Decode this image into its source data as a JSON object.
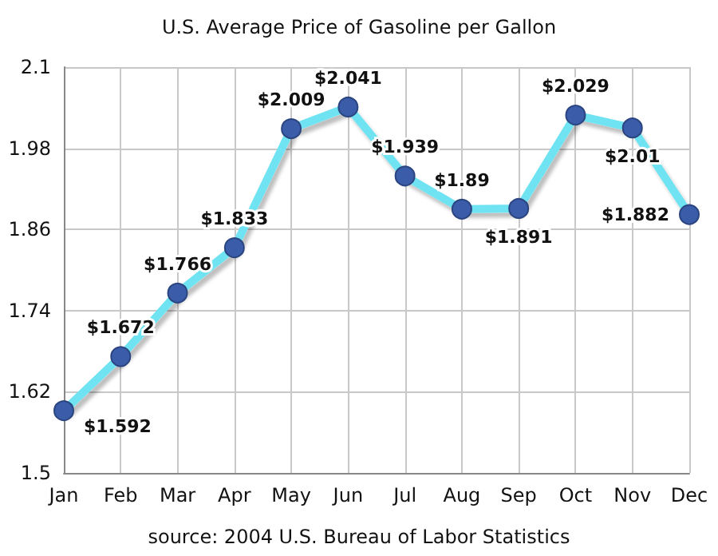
{
  "chart_data": {
    "type": "line",
    "title": "U.S. Average Price of Gasoline per Gallon",
    "categories": [
      "Jan",
      "Feb",
      "Mar",
      "Apr",
      "May",
      "Jun",
      "Jul",
      "Aug",
      "Sep",
      "Oct",
      "Nov",
      "Dec"
    ],
    "series": [
      {
        "color": "#6fe3f2",
        "values": [
          1.592,
          1.672,
          1.766,
          1.833,
          2.009,
          2.041,
          1.939,
          1.89,
          1.891,
          2.029,
          2.01,
          1.882
        ],
        "value_labels": [
          "$1.592",
          "$1.672",
          "$1.766",
          "$1.833",
          "$2.009",
          "$2.041",
          "$1.939",
          "$1.89",
          "$1.891",
          "$2.029",
          "$2.01",
          "$1.882"
        ]
      }
    ],
    "ylim": [
      1.5,
      2.1
    ],
    "yticks": [
      1.5,
      1.62,
      1.74,
      1.86,
      1.98,
      2.1
    ],
    "grid": true,
    "marker": "circle",
    "line_style": "solid",
    "annotations": [
      "source: 2004 U.S. Bureau of Labor Statistics"
    ]
  }
}
